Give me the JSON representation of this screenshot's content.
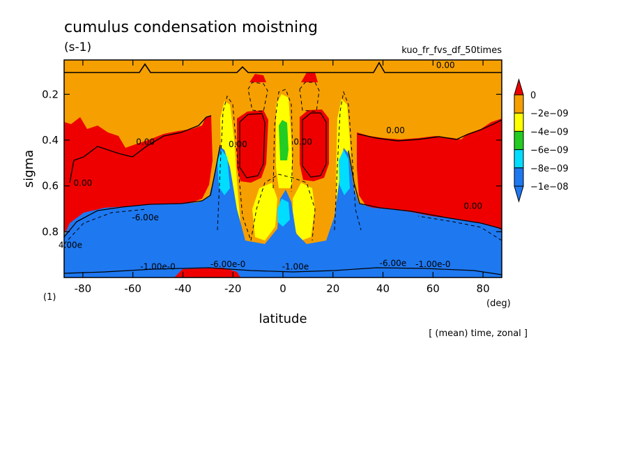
{
  "chart_data": {
    "type": "contour",
    "title": "cumulus condensation moistning",
    "units": "(s-1)",
    "run_name": "kuo_fr_fvs_df_50times",
    "xlabel": "latitude",
    "xunit": "(deg)",
    "ylabel": "sigma",
    "yunit": "(1)",
    "footnote": "[ (mean) time, zonal ]",
    "xlim": [
      -87.5,
      87.5
    ],
    "ylim": [
      1.0,
      0.05
    ],
    "x_ticks": [
      -80,
      -60,
      -40,
      -20,
      0,
      20,
      40,
      60,
      80
    ],
    "x_tick_labels": [
      "-80",
      "-60",
      "-40",
      "-20",
      "0",
      "20",
      "40",
      "60",
      "80"
    ],
    "y_ticks": [
      0.2,
      0.4,
      0.6,
      0.8
    ],
    "y_tick_labels": [
      "0.2",
      "0.4",
      "0.6",
      "0.8"
    ],
    "colorbar": {
      "levels": [
        0,
        -2e-09,
        -4e-09,
        -6e-09,
        -8e-09,
        -1e-08
      ],
      "labels": [
        "0",
        "−2e−09",
        "−4e−09",
        "−6e−09",
        "−8e−09",
        "−1e−08"
      ],
      "colors": [
        "#ee0000",
        "#f5a000",
        "#ffff00",
        "#22cc22",
        "#00ddff",
        "#1e78f0"
      ]
    },
    "contour_labels": [
      {
        "text": "0.00",
        "lat": 65,
        "sigma": 0.085
      },
      {
        "text": "0.00",
        "lat": 45,
        "sigma": 0.37
      },
      {
        "text": "0.00",
        "lat": -55,
        "sigma": 0.42
      },
      {
        "text": "0.00",
        "lat": -18,
        "sigma": 0.43
      },
      {
        "text": "0.00",
        "lat": 8,
        "sigma": 0.42
      },
      {
        "text": "0.00",
        "lat": -80,
        "sigma": 0.6
      },
      {
        "text": "0.00",
        "lat": 76,
        "sigma": 0.7
      },
      {
        "text": "-6.00e",
        "lat": -55,
        "sigma": 0.75
      },
      {
        "text": "4.00e",
        "lat": -85,
        "sigma": 0.87
      },
      {
        "text": "-6.00e-0",
        "lat": -22,
        "sigma": 0.955
      },
      {
        "text": "-1.00e-0",
        "lat": -50,
        "sigma": 0.965
      },
      {
        "text": "-1.00e-0",
        "lat": 60,
        "sigma": 0.955
      },
      {
        "text": "-6.00e",
        "lat": 44,
        "sigma": 0.95
      },
      {
        "text": "-1.00e",
        "lat": 5,
        "sigma": 0.965
      }
    ]
  }
}
